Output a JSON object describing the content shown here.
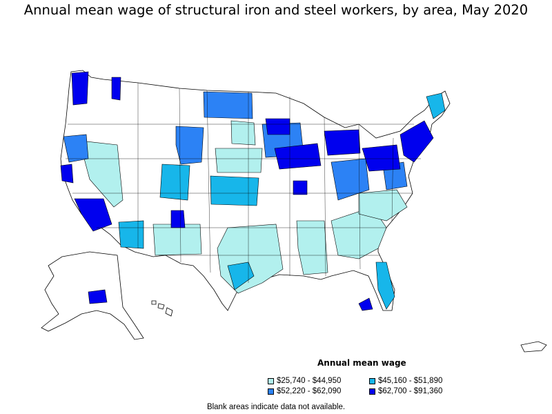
{
  "title": "Annual mean wage of structural iron and steel workers, by area, May 2020",
  "legend": {
    "title": "Annual mean wage",
    "items": [
      {
        "label": "$25,740 - $44,950",
        "color": "#b2f0ee"
      },
      {
        "label": "$45,160 - $51,890",
        "color": "#17b6ea"
      },
      {
        "label": "$52,220 - $62,090",
        "color": "#2c82f5"
      },
      {
        "label": "$62,700 - $91,360",
        "color": "#0000ee"
      }
    ]
  },
  "note": "Blank areas indicate data not available.",
  "colors": {
    "nodata": "#ffffff",
    "border": "#000000"
  }
}
